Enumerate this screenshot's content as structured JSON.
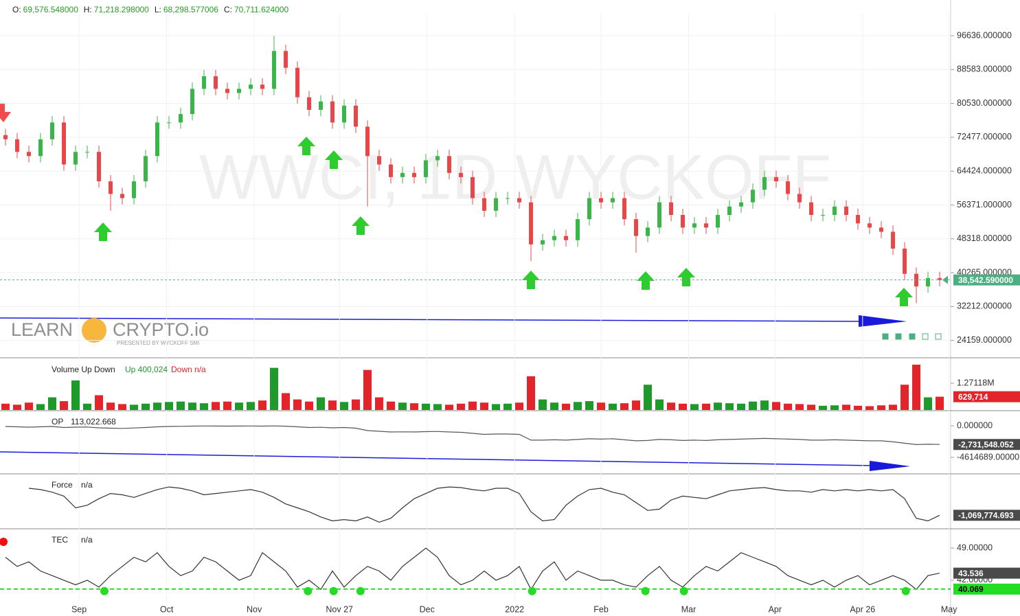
{
  "header": {
    "items": [
      {
        "label": "O:",
        "value": "69,576.548000"
      },
      {
        "label": "H:",
        "value": "71,218.298000"
      },
      {
        "label": "L:",
        "value": "68,298.577006"
      },
      {
        "label": "C:",
        "value": "70,711.624000"
      }
    ]
  },
  "watermark": "WWCI, 1D WYCKOFF",
  "logo": {
    "left": "LEARN",
    "right": "CRYPTO.io",
    "tagline": "PRESENTED BY WYCKOFF SMI"
  },
  "chart_data": [
    {
      "type": "candlestick",
      "up_color": "#3bb54a",
      "down_color": "#e8474a",
      "xlim": [
        -0.47,
        80.88
      ],
      "xticks": [
        {
          "value": 6.3,
          "label": "Sep"
        },
        {
          "value": 13.8,
          "label": "Oct"
        },
        {
          "value": 21.3,
          "label": "Nov"
        },
        {
          "value": 28.6,
          "label": "Nov 27"
        },
        {
          "value": 36.1,
          "label": "Dec"
        },
        {
          "value": 43.6,
          "label": "2022"
        },
        {
          "value": 51,
          "label": "Feb"
        },
        {
          "value": 58.5,
          "label": "Mar"
        },
        {
          "value": 65.9,
          "label": "Apr"
        },
        {
          "value": 73.4,
          "label": "Apr 26"
        },
        {
          "value": 80.8,
          "label": "May"
        }
      ],
      "ylim": [
        20190,
        101863
      ],
      "yticks": [
        {
          "value": 96636,
          "label": "96636.000000"
        },
        {
          "value": 88583,
          "label": "88583.000000"
        },
        {
          "value": 80530,
          "label": "80530.000000"
        },
        {
          "value": 72477,
          "label": "72477.000000"
        },
        {
          "value": 64424,
          "label": "64424.000000"
        },
        {
          "value": 56371,
          "label": "56371.000000"
        },
        {
          "value": 48318,
          "label": "48318.000000"
        },
        {
          "value": 40265,
          "label": "40265.000000"
        },
        {
          "value": 32212,
          "label": "32212.000000"
        },
        {
          "value": 24159,
          "label": "24159.000000"
        }
      ],
      "grid": true,
      "last": {
        "value": 38542.59,
        "label": "38,542.590000",
        "color": "#4caf82"
      },
      "open": [
        73000,
        72000,
        69000,
        68000,
        72000,
        76000,
        66000,
        69000,
        69000,
        62000,
        59000,
        58000,
        62000,
        68000,
        76000,
        76000,
        78000,
        84000,
        87000,
        84000,
        83000,
        84000,
        85000,
        84000,
        93000,
        89000,
        82000,
        79000,
        81000,
        76000,
        80000,
        75000,
        68000,
        66000,
        63000,
        64000,
        63000,
        67000,
        68000,
        64000,
        63000,
        58000,
        55000,
        58000,
        58000,
        57000,
        47000,
        48000,
        49000,
        48000,
        53000,
        58000,
        57000,
        58000,
        53000,
        49000,
        51000,
        57000,
        54000,
        51000,
        52000,
        51000,
        54000,
        56000,
        57000,
        60000,
        63000,
        62000,
        59000,
        57000,
        54000,
        54000,
        56000,
        54000,
        52000,
        51000,
        50000,
        46000,
        40000,
        37000,
        39000
      ],
      "high": [
        74500,
        73500,
        70500,
        73500,
        77500,
        77500,
        70500,
        70500,
        70500,
        63500,
        60500,
        63500,
        69500,
        77500,
        77500,
        79500,
        85500,
        88500,
        88500,
        85500,
        85500,
        86500,
        86500,
        96600,
        94500,
        90500,
        83500,
        82500,
        82500,
        81500,
        81500,
        76500,
        69500,
        67500,
        65500,
        65500,
        68500,
        69500,
        69500,
        65500,
        64500,
        59500,
        59500,
        59500,
        59500,
        58500,
        49500,
        50500,
        50500,
        54500,
        59500,
        59500,
        59500,
        59500,
        54500,
        52500,
        58500,
        58500,
        55500,
        53500,
        53500,
        55500,
        57500,
        58500,
        61500,
        64500,
        64500,
        63500,
        60500,
        58500,
        55500,
        57500,
        57500,
        55500,
        53500,
        52500,
        51500,
        47500,
        41500,
        40500,
        40500
      ],
      "low": [
        70500,
        67500,
        66500,
        66500,
        70500,
        64500,
        64500,
        67500,
        60500,
        55000,
        56500,
        56500,
        60500,
        66500,
        74500,
        74500,
        76500,
        82500,
        82500,
        81500,
        81500,
        82500,
        82500,
        82500,
        87500,
        80500,
        77500,
        77500,
        74500,
        74500,
        73500,
        56000,
        64500,
        61500,
        61500,
        61500,
        61500,
        65500,
        62500,
        61500,
        56500,
        53500,
        53500,
        56500,
        55500,
        43000,
        45500,
        46500,
        46500,
        46500,
        51500,
        55500,
        55500,
        51500,
        45000,
        47500,
        49500,
        52500,
        49500,
        49500,
        49500,
        49500,
        52500,
        54500,
        55500,
        58500,
        60500,
        57500,
        55500,
        52500,
        52500,
        52500,
        52500,
        50500,
        49500,
        48500,
        44500,
        38500,
        33000,
        35500,
        37000
      ],
      "close": [
        72000,
        69000,
        68000,
        72000,
        76000,
        66000,
        69000,
        69000,
        62000,
        59000,
        58000,
        62000,
        68000,
        76000,
        76000,
        78000,
        84000,
        87000,
        84000,
        83000,
        84000,
        85000,
        84000,
        93000,
        89000,
        82000,
        79000,
        81000,
        76000,
        80000,
        75000,
        68000,
        66000,
        63000,
        64000,
        63000,
        67000,
        68000,
        64000,
        63000,
        58000,
        55000,
        58000,
        58000,
        57000,
        47000,
        48000,
        49000,
        48000,
        53000,
        58000,
        57000,
        58000,
        53000,
        49000,
        51000,
        57000,
        54000,
        51000,
        52000,
        51000,
        54000,
        56000,
        57000,
        60000,
        63000,
        62000,
        59000,
        57000,
        54000,
        54000,
        56000,
        54000,
        52000,
        51000,
        50000,
        46000,
        40000,
        37000,
        39000,
        38542.59
      ]
    },
    {
      "type": "bar",
      "up_color": "#1f9a2a",
      "down_color": "#e3242b",
      "legend": {
        "name": "Volume Up Down",
        "up": "Up 400,024",
        "down": "Down n/a"
      },
      "ylim": [
        0,
        2183000
      ],
      "yticks": [
        {
          "value": 1271180,
          "label": "1.27118M"
        }
      ],
      "current": {
        "value": 629714,
        "label": "629,714"
      },
      "values": [
        300000,
        250000,
        350000,
        280000,
        600000,
        420000,
        1400000,
        300000,
        700000,
        350000,
        280000,
        250000,
        300000,
        350000,
        380000,
        400000,
        350000,
        320000,
        380000,
        400000,
        350000,
        380000,
        450000,
        2000000,
        800000,
        500000,
        400000,
        600000,
        450000,
        380000,
        500000,
        1900000,
        600000,
        400000,
        350000,
        320000,
        300000,
        280000,
        250000,
        300000,
        400000,
        350000,
        280000,
        300000,
        350000,
        1600000,
        500000,
        350000,
        300000,
        380000,
        420000,
        350000,
        300000,
        320000,
        450000,
        1200000,
        500000,
        350000,
        300000,
        280000,
        300000,
        350000,
        320000,
        300000,
        400000,
        450000,
        380000,
        300000,
        280000,
        250000,
        200000,
        220000,
        250000,
        200000,
        180000,
        220000,
        250000,
        1200000,
        2150000,
        600000,
        629714
      ]
    },
    {
      "type": "line",
      "color": "#555555",
      "legend": {
        "name": "OP",
        "value": "113,022.668"
      },
      "ylim": [
        -7022000,
        2006000
      ],
      "yticks": [
        {
          "value": 0,
          "label": "0.000000"
        },
        {
          "value": -4614689,
          "label": "-4614689.00000"
        }
      ],
      "current_label": "-2,731,548.052",
      "values": [
        -100000,
        -150000,
        -200000,
        -150000,
        -100000,
        -250000,
        -200000,
        -180000,
        -300000,
        -350000,
        -380000,
        -320000,
        -250000,
        -150000,
        -100000,
        -80000,
        -50000,
        -30000,
        -40000,
        -50000,
        -40000,
        -30000,
        -50000,
        -20000,
        -60000,
        -150000,
        -250000,
        -220000,
        -300000,
        -250000,
        -350000,
        -700000,
        -800000,
        -900000,
        -880000,
        -900000,
        -850000,
        -830000,
        -900000,
        -950000,
        -1100000,
        -1250000,
        -1200000,
        -1200000,
        -1250000,
        -2100000,
        -2100000,
        -2050000,
        -2100000,
        -2000000,
        -1900000,
        -1950000,
        -1900000,
        -2050000,
        -2200000,
        -2150000,
        -2000000,
        -2050000,
        -2150000,
        -2100000,
        -2150000,
        -2050000,
        -2000000,
        -1950000,
        -1900000,
        -1850000,
        -1900000,
        -1950000,
        -2000000,
        -2100000,
        -2100000,
        -2050000,
        -2100000,
        -2150000,
        -2200000,
        -2200000,
        -2350000,
        -2550000,
        -2750000,
        -2700000,
        -2731548.052
      ]
    },
    {
      "type": "line",
      "color": "#333333",
      "legend": {
        "name": "Force",
        "value": "n/a"
      },
      "ylim": [
        -2000000,
        2000000
      ],
      "current_label": "-1,069,774.693",
      "values": [
        null,
        null,
        1000000,
        900000,
        700000,
        400000,
        -500000,
        -300000,
        200000,
        600000,
        500000,
        300000,
        600000,
        900000,
        1100000,
        1000000,
        800000,
        500000,
        600000,
        700000,
        800000,
        900000,
        700000,
        300000,
        -200000,
        -500000,
        -800000,
        -1200000,
        -1500000,
        -1400000,
        -1500000,
        -1200000,
        -1600000,
        -1300000,
        -500000,
        200000,
        600000,
        1000000,
        1100000,
        1050000,
        900000,
        800000,
        1000000,
        1000000,
        600000,
        -800000,
        -1500000,
        -1400000,
        -300000,
        400000,
        900000,
        1000000,
        700000,
        500000,
        -100000,
        -700000,
        -600000,
        100000,
        400000,
        300000,
        200000,
        500000,
        800000,
        900000,
        1000000,
        1050000,
        900000,
        800000,
        800000,
        700000,
        900000,
        800000,
        900000,
        800000,
        900000,
        800000,
        900000,
        200000,
        -1300000,
        -1500000,
        -1069774.693
      ]
    },
    {
      "type": "line",
      "color": "#333333",
      "legend": {
        "name": "TEC",
        "value": "n/a"
      },
      "ylim": [
        37.2,
        52.9
      ],
      "yticks": [
        {
          "value": 49,
          "label": "49.00000"
        },
        {
          "value": 42,
          "label": "42.00000"
        }
      ],
      "current_label": "43.536",
      "threshold": {
        "value": 40.069,
        "label": "40.069",
        "color": "#22dd22"
      },
      "signals": [
        8.47,
        25.9,
        28.1,
        30.4,
        45.1,
        54.8,
        58.1,
        77.1
      ],
      "values": [
        47,
        45,
        46,
        44,
        43,
        42,
        41,
        42,
        40.5,
        43,
        45,
        47,
        46,
        48,
        45,
        43,
        44,
        47,
        46,
        44,
        42,
        43,
        48,
        46,
        44,
        40.5,
        42,
        40,
        44,
        40.5,
        43,
        45,
        44,
        42,
        45,
        47,
        49,
        47,
        43,
        41,
        42,
        44,
        42,
        43,
        45,
        40,
        44,
        46,
        42,
        44,
        43,
        42,
        42,
        41,
        40.5,
        43,
        45,
        42,
        40.5,
        43,
        45,
        44,
        46,
        48,
        47,
        46,
        45,
        43,
        42,
        41,
        42,
        40.5,
        42,
        43,
        41,
        42,
        43,
        42,
        40,
        43,
        43.536
      ]
    }
  ]
}
